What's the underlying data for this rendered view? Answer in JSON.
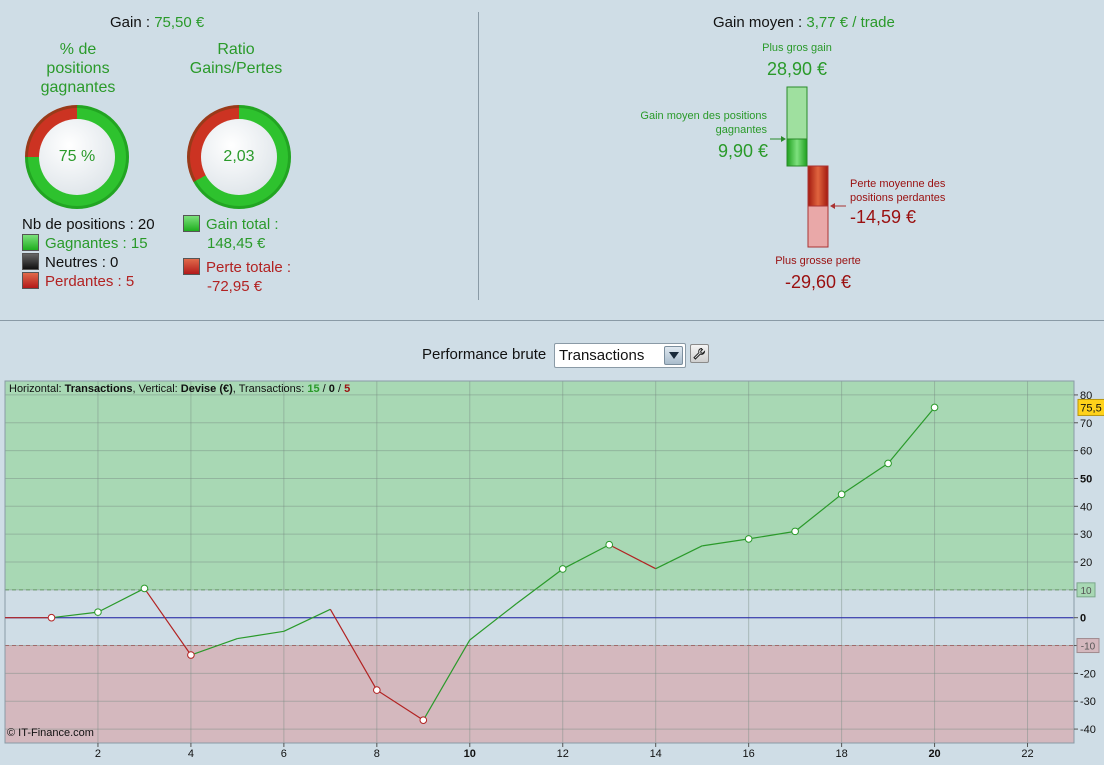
{
  "summary": {
    "gain_label": "Gain : ",
    "gain_value": "75,50 €",
    "pct_title_line1": "% de",
    "pct_title_line2": "positions",
    "pct_title_line3": "gagnantes",
    "pct_value": "75 %",
    "ratio_title_line1": "Ratio",
    "ratio_title_line2": "Gains/Pertes",
    "ratio_value": "2,03",
    "nb_positions": "Nb de positions : 20",
    "gagnantes": "Gagnantes : 15",
    "neutres": "Neutres : 0",
    "perdantes": "Perdantes : 5",
    "gain_total_label": "Gain total :",
    "gain_total_value": "148,45 €",
    "perte_totale_label": "Perte totale :",
    "perte_totale_value": "-72,95 €"
  },
  "gain_moyen": {
    "label": "Gain moyen : ",
    "value": "3,77 € / trade",
    "plus_gros_gain_label": "Plus gros gain",
    "plus_gros_gain_value": "28,90 €",
    "gain_moyen_pos_label_1": "Gain moyen des positions",
    "gain_moyen_pos_label_2": "gagnantes",
    "gain_moyen_pos_value": "9,90 €",
    "perte_moyenne_label_1": "Perte moyenne des",
    "perte_moyenne_label_2": "positions perdantes",
    "perte_moyenne_value": "-14,59 €",
    "plus_grosse_perte_label": "Plus grosse perte",
    "plus_grosse_perte_value": "-29,60 €"
  },
  "performance": {
    "label": "Performance brute",
    "select_value": "Transactions"
  },
  "chart_info": {
    "horizontal_label": "Horizontal: ",
    "horizontal_value": "Transactions",
    "vertical_label": ", Vertical: ",
    "vertical_value": "Devise (€)",
    "transactions_label": ", Transactions: ",
    "t_win": "15",
    "t_sep1": " / ",
    "t_neutral": "0",
    "t_sep2": " / ",
    "t_loss": "5"
  },
  "copyright": "© IT-Finance.com",
  "colors": {
    "win": "#2a9a2a",
    "loss": "#b22222",
    "zone_green": "#a8d8b4",
    "zone_red": "#d4b8be",
    "zero_line": "#2222aa"
  },
  "chart_data": {
    "type": "line",
    "x": [
      1,
      2,
      3,
      4,
      5,
      6,
      7,
      8,
      9,
      10,
      11,
      12,
      13,
      14,
      15,
      16,
      17,
      18,
      19,
      20
    ],
    "values": [
      0,
      2.0,
      10.5,
      -13.4,
      -7.5,
      -4.9,
      3.0,
      -26.0,
      -36.8,
      -8.0,
      5.0,
      17.5,
      26.2,
      17.6,
      25.8,
      28.3,
      31.0,
      44.3,
      55.4,
      75.5
    ],
    "markers": [
      1,
      2,
      3,
      4,
      8,
      9,
      12,
      13,
      16,
      17,
      18,
      19,
      20
    ],
    "xlim": [
      0,
      23
    ],
    "ylim": [
      -45,
      85
    ],
    "x_ticks": [
      2,
      4,
      6,
      8,
      10,
      12,
      14,
      16,
      18,
      20,
      22
    ],
    "y_ticks": [
      -40,
      -30,
      -20,
      -10,
      0,
      10,
      20,
      30,
      40,
      50,
      60,
      70,
      80
    ],
    "upper_zone": 10,
    "lower_zone": -10,
    "last_value_label": "75,5",
    "band_labels": [
      "10",
      "-10"
    ]
  }
}
